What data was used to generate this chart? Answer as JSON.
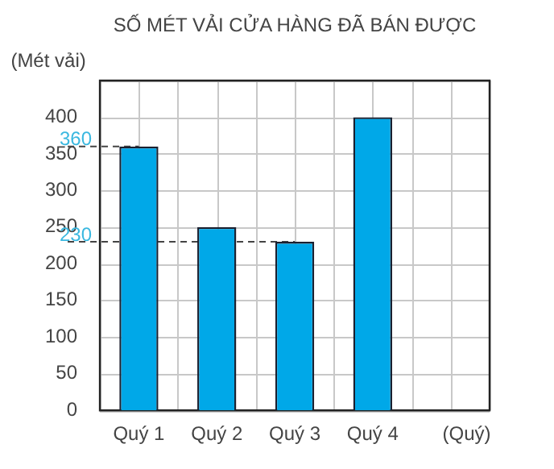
{
  "chart_data": {
    "type": "bar",
    "title": "SỐ MÉT VẢI CỬA HÀNG ĐÃ BÁN ĐƯỢC",
    "ylabel": "(Mét vải)",
    "xlabel": "(Quý)",
    "categories": [
      "Quý 1",
      "Quý 2",
      "Quý 3",
      "Quý 4",
      null
    ],
    "values": [
      360,
      250,
      230,
      400,
      null
    ],
    "color": "#00a8e8",
    "ylim": [
      0,
      450
    ],
    "yticks": [
      0,
      50,
      100,
      150,
      200,
      250,
      300,
      350,
      400,
      {
        "value": 450,
        "label": null
      }
    ],
    "ref_lines": [
      {
        "axis": "y",
        "value": 360,
        "label": "360",
        "color": "#444444",
        "line_style": "dashed"
      },
      {
        "axis": "y",
        "value": 230,
        "label": "230",
        "color": "#444444",
        "line_style": "dashed"
      }
    ],
    "grid": true,
    "legend": false
  }
}
